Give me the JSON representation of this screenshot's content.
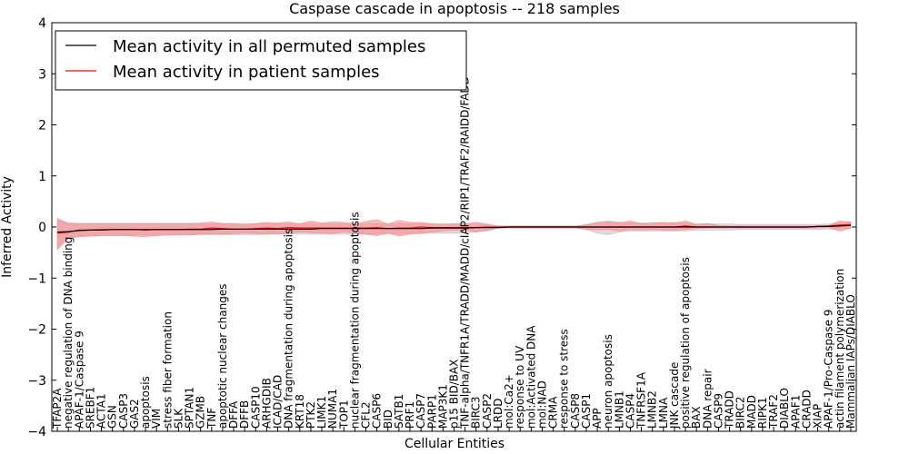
{
  "chart_data": {
    "type": "line",
    "title": "Caspase cascade in apoptosis -- 218 samples",
    "xlabel": "Cellular Entities",
    "ylabel": "Inferred Activity",
    "ylim": [
      -4,
      4
    ],
    "yticks": [
      -4,
      -3,
      -2,
      -1,
      0,
      1,
      2,
      3,
      4
    ],
    "ytick_labels": [
      "−4",
      "−3",
      "−2",
      "−1",
      "0",
      "1",
      "2",
      "3",
      "4"
    ],
    "grid": false,
    "legend_position": "top-left",
    "colors": {
      "permuted_line": "#000000",
      "permuted_band": "#b8b8c8",
      "patient_line": "#ff0000",
      "patient_band": "#ff8080"
    },
    "categories": [
      "TFAP2A",
      "negative regulation of DNA binding",
      "APAF-1/Caspase 9",
      "SREBF1",
      "ACTA1",
      "GSN",
      "CASP3",
      "GAS2",
      "apoptosis",
      "VIM",
      "stress fiber formation",
      "SLK",
      "SPTAN1",
      "GZMB",
      "TNF",
      "apoptotic nuclear changes",
      "DFFA",
      "DFFB",
      "CASP10",
      "ARHGDIB",
      "ICAD/CAD",
      "DNA fragmentation during apoptosis",
      "KRT18",
      "PTK2",
      "LIMK1",
      "NUMA1",
      "TOP1",
      "nuclear fragmentation during apoptosis",
      "CFL2",
      "CASP6",
      "BID",
      "SATB1",
      "PRF1",
      "CASP7",
      "PARP1",
      "MAP3K1",
      "p15 BID/BAX",
      "TNF-alpha/TNFR1A/TRADD/MADD/cIAP2/RIP1/TRAF2/RAIDD/FADD",
      "BIRC3",
      "CASP2",
      "LRDD",
      "mol:Ca2+",
      "response to UV",
      "mol:Activated DNA",
      "mol:NAD",
      "CRMA",
      "response to stress",
      "CASP8",
      "CASP1",
      "APP",
      "neuron apoptosis",
      "LMNB1",
      "CASP4",
      "TNFRSF1A",
      "LMNB2",
      "LMNA",
      "JNK cascade",
      "positive regulation of apoptosis",
      "BAX",
      "DNA repair",
      "CASP9",
      "TRADD",
      "BIRC2",
      "MADD",
      "RIPK1",
      "TRAF2",
      "DIABLO",
      "APAF1",
      "CRADD",
      "XIAP",
      "APAF-1/Pro-Caspase 9",
      "actin filament polymerization",
      "Mammalian IAPs/DIABLO"
    ],
    "series": [
      {
        "name": "Mean activity in all permuted samples",
        "values": [
          -0.1,
          -0.09,
          -0.07,
          -0.06,
          -0.06,
          -0.05,
          -0.05,
          -0.05,
          -0.05,
          -0.05,
          -0.05,
          -0.05,
          -0.05,
          -0.05,
          -0.05,
          -0.04,
          -0.04,
          -0.04,
          -0.04,
          -0.04,
          -0.04,
          -0.04,
          -0.04,
          -0.04,
          -0.03,
          -0.03,
          -0.03,
          -0.03,
          -0.03,
          -0.03,
          -0.03,
          -0.03,
          -0.03,
          -0.03,
          -0.02,
          -0.02,
          -0.02,
          -0.02,
          -0.01,
          -0.01,
          -0.01,
          0.0,
          0.0,
          0.0,
          0.0,
          0.0,
          0.0,
          0.0,
          0.0,
          0.0,
          0.0,
          0.0,
          0.0,
          0.0,
          0.0,
          0.0,
          0.0,
          0.0,
          0.0,
          0.0,
          0.0,
          0.0,
          0.0,
          0.0,
          0.0,
          0.0,
          0.0,
          0.0,
          0.0,
          0.01,
          0.01,
          0.02,
          0.03
        ],
        "lower": [
          -0.4,
          -0.2,
          -0.18,
          -0.17,
          -0.16,
          -0.16,
          -0.16,
          -0.16,
          -0.16,
          -0.16,
          -0.16,
          -0.16,
          -0.16,
          -0.15,
          -0.15,
          -0.15,
          -0.15,
          -0.15,
          -0.15,
          -0.14,
          -0.14,
          -0.14,
          -0.14,
          -0.14,
          -0.14,
          -0.14,
          -0.14,
          -0.14,
          -0.14,
          -0.13,
          -0.13,
          -0.13,
          -0.13,
          -0.13,
          -0.12,
          -0.12,
          -0.12,
          -0.12,
          -0.1,
          -0.08,
          -0.02,
          -0.02,
          -0.02,
          -0.02,
          -0.02,
          -0.02,
          -0.02,
          -0.02,
          -0.05,
          -0.12,
          -0.15,
          -0.1,
          -0.08,
          -0.08,
          -0.08,
          -0.08,
          -0.08,
          -0.08,
          -0.06,
          -0.06,
          -0.06,
          -0.06,
          -0.05,
          -0.05,
          -0.05,
          -0.05,
          -0.05,
          -0.05,
          -0.05,
          -0.05,
          -0.04,
          -0.04,
          -0.03
        ],
        "upper": [
          0.18,
          0.06,
          0.06,
          0.06,
          0.06,
          0.06,
          0.06,
          0.06,
          0.06,
          0.06,
          0.06,
          0.06,
          0.06,
          0.06,
          0.06,
          0.06,
          0.06,
          0.06,
          0.06,
          0.06,
          0.06,
          0.06,
          0.06,
          0.06,
          0.06,
          0.06,
          0.06,
          0.06,
          0.06,
          0.06,
          0.06,
          0.06,
          0.06,
          0.06,
          0.06,
          0.06,
          0.06,
          0.06,
          0.06,
          0.04,
          0.02,
          0.02,
          0.02,
          0.02,
          0.02,
          0.02,
          0.02,
          0.02,
          0.05,
          0.1,
          0.12,
          0.1,
          0.08,
          0.08,
          0.08,
          0.08,
          0.08,
          0.08,
          0.06,
          0.06,
          0.06,
          0.06,
          0.05,
          0.05,
          0.05,
          0.05,
          0.05,
          0.05,
          0.05,
          0.05,
          0.06,
          0.08,
          0.1
        ]
      },
      {
        "name": "Mean activity in patient samples",
        "values": [
          -0.12,
          -0.1,
          -0.06,
          -0.06,
          -0.05,
          -0.05,
          -0.05,
          -0.05,
          -0.06,
          -0.05,
          -0.05,
          -0.05,
          -0.04,
          -0.04,
          -0.02,
          -0.03,
          -0.04,
          -0.04,
          -0.03,
          -0.02,
          -0.03,
          -0.01,
          -0.02,
          -0.02,
          -0.02,
          -0.02,
          -0.02,
          -0.02,
          -0.02,
          -0.01,
          -0.03,
          -0.02,
          -0.02,
          0.0,
          -0.01,
          -0.01,
          -0.01,
          -0.01,
          -0.01,
          0.0,
          0.0,
          0.0,
          0.0,
          0.0,
          0.0,
          0.0,
          0.0,
          0.0,
          0.0,
          0.0,
          0.0,
          0.0,
          0.0,
          0.0,
          0.0,
          0.0,
          0.0,
          0.02,
          0.0,
          0.0,
          0.0,
          0.0,
          0.0,
          0.0,
          0.0,
          0.0,
          0.0,
          0.0,
          0.0,
          0.01,
          0.02,
          0.04,
          0.05
        ],
        "lower": [
          -0.45,
          -0.22,
          -0.19,
          -0.18,
          -0.17,
          -0.17,
          -0.17,
          -0.18,
          -0.19,
          -0.17,
          -0.16,
          -0.16,
          -0.15,
          -0.14,
          -0.13,
          -0.14,
          -0.13,
          -0.12,
          -0.13,
          -0.14,
          -0.13,
          -0.12,
          -0.1,
          -0.11,
          -0.12,
          -0.13,
          -0.1,
          -0.12,
          -0.14,
          -0.17,
          -0.12,
          -0.18,
          -0.14,
          -0.12,
          -0.1,
          -0.08,
          -0.06,
          -0.06,
          -0.1,
          -0.06,
          -0.02,
          -0.02,
          -0.02,
          -0.02,
          -0.02,
          -0.02,
          -0.02,
          -0.02,
          -0.04,
          -0.06,
          -0.05,
          -0.08,
          -0.05,
          -0.06,
          -0.05,
          -0.06,
          -0.06,
          -0.05,
          -0.03,
          -0.02,
          -0.02,
          -0.02,
          -0.02,
          -0.02,
          -0.02,
          -0.02,
          -0.02,
          -0.02,
          -0.02,
          -0.02,
          -0.01,
          -0.08,
          -0.02
        ],
        "upper": [
          0.15,
          0.08,
          0.07,
          0.07,
          0.07,
          0.07,
          0.07,
          0.07,
          0.07,
          0.07,
          0.07,
          0.07,
          0.07,
          0.08,
          0.1,
          0.07,
          0.07,
          0.05,
          0.07,
          0.09,
          0.08,
          0.1,
          0.06,
          0.12,
          0.08,
          0.1,
          0.09,
          0.06,
          0.11,
          0.14,
          0.06,
          0.13,
          0.09,
          0.09,
          0.06,
          0.05,
          0.06,
          0.06,
          0.09,
          0.06,
          0.02,
          0.02,
          0.02,
          0.02,
          0.02,
          0.02,
          0.02,
          0.02,
          0.04,
          0.08,
          0.1,
          0.08,
          0.12,
          0.06,
          0.08,
          0.09,
          0.08,
          0.12,
          0.05,
          0.07,
          0.03,
          0.02,
          0.02,
          0.02,
          0.02,
          0.02,
          0.02,
          0.02,
          0.02,
          0.02,
          0.03,
          0.12,
          0.1
        ]
      }
    ]
  }
}
